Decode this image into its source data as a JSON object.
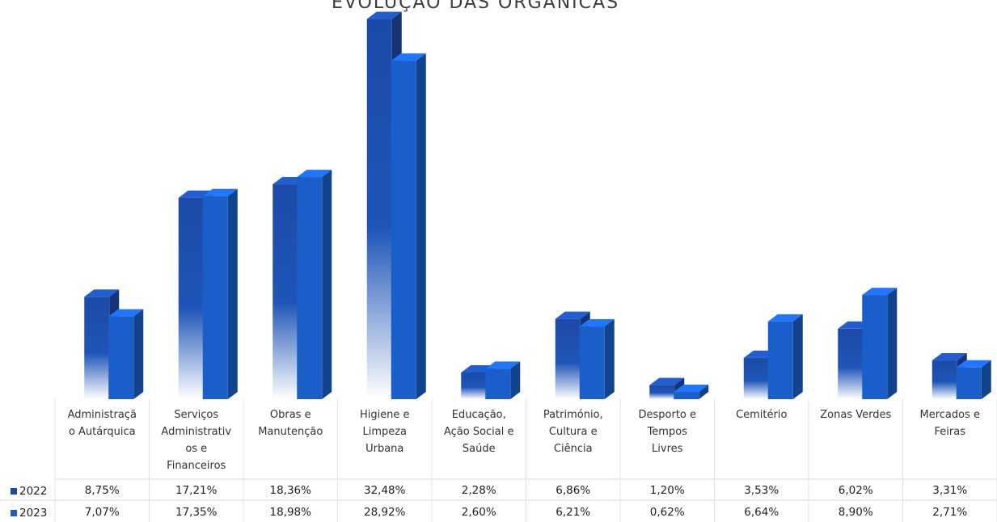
{
  "chart_data": {
    "type": "bar",
    "title": "EVOLUÇÃO DAS ORGÂNICAS",
    "categories": [
      [
        "Administraçã",
        "o Autárquica"
      ],
      [
        "Serviços",
        "Administrativ",
        "os e",
        "Financeiros"
      ],
      [
        "Obras e",
        "Manutenção"
      ],
      [
        "Higiene e",
        "Limpeza",
        "Urbana"
      ],
      [
        "Educação,",
        "Ação Social e",
        "Saúde"
      ],
      [
        "Património,",
        "Cultura e",
        "Ciência"
      ],
      [
        "Desporto e",
        "Tempos",
        "Livres"
      ],
      [
        "Cemitério"
      ],
      [
        "Zonas Verdes"
      ],
      [
        "Mercados e",
        "Feiras"
      ]
    ],
    "series": [
      {
        "name": "2022",
        "values": [
          8.75,
          17.21,
          18.36,
          32.48,
          2.28,
          6.86,
          1.2,
          3.53,
          6.02,
          3.31
        ],
        "labels": [
          "8,75%",
          "17,21%",
          "18,36%",
          "32,48%",
          "2,28%",
          "6,86%",
          "1,20%",
          "3,53%",
          "6,02%",
          "3,31%"
        ],
        "color": "#1c4aa8"
      },
      {
        "name": "2023",
        "values": [
          7.07,
          17.35,
          18.98,
          28.92,
          2.6,
          6.21,
          0.62,
          6.64,
          8.9,
          2.71
        ],
        "labels": [
          "7,07%",
          "17,35%",
          "18,98%",
          "28,92%",
          "2,60%",
          "6,21%",
          "0,62%",
          "6,64%",
          "8,90%",
          "2,71%"
        ],
        "color": "#1a5fc9"
      }
    ],
    "ylim": [
      0,
      33
    ],
    "grid": false,
    "legend": "data-table"
  }
}
